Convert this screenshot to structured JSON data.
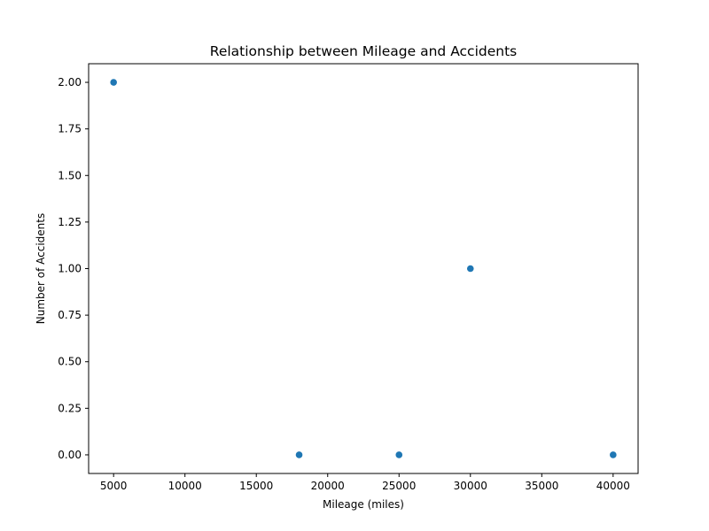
{
  "chart_data": {
    "type": "scatter",
    "title": "Relationship between Mileage and Accidents",
    "xlabel": "Mileage (miles)",
    "ylabel": "Number of Accidents",
    "x": [
      5000,
      18000,
      25000,
      30000,
      40000
    ],
    "y": [
      2,
      0,
      0,
      1,
      0
    ],
    "xlim": [
      3250,
      41750
    ],
    "ylim": [
      -0.1,
      2.1
    ],
    "xticks": [
      5000,
      10000,
      15000,
      20000,
      25000,
      30000,
      35000,
      40000
    ],
    "xtick_labels": [
      "5000",
      "10000",
      "15000",
      "20000",
      "25000",
      "30000",
      "35000",
      "40000"
    ],
    "yticks": [
      0,
      0.25,
      0.5,
      0.75,
      1,
      1.25,
      1.5,
      1.75,
      2
    ],
    "ytick_labels": [
      "0.00",
      "0.25",
      "0.50",
      "0.75",
      "1.00",
      "1.25",
      "1.50",
      "1.75",
      "2.00"
    ],
    "grid": false,
    "point_color": "#1f77b4"
  }
}
